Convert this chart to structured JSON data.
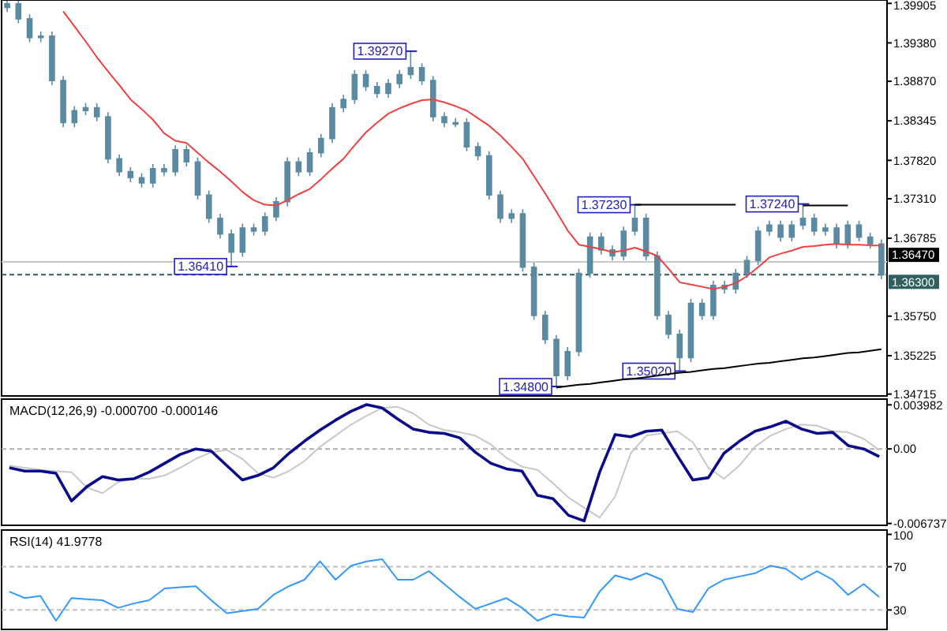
{
  "chart_data": [
    {
      "type": "candlestick",
      "color": "#5b8aa3",
      "categories": [
        null,
        null,
        null,
        null,
        null,
        null,
        null,
        null,
        null,
        null,
        null,
        null,
        null,
        null,
        null,
        null,
        null,
        null,
        null,
        null,
        null,
        null,
        null,
        null,
        null,
        null,
        null,
        null,
        null,
        null,
        null,
        null,
        null,
        null,
        null,
        null,
        null,
        null,
        null,
        null,
        null,
        null,
        null,
        null,
        null,
        null,
        null,
        null,
        null,
        null,
        null,
        null,
        null,
        null,
        null,
        null,
        null,
        null,
        null,
        null,
        null,
        null,
        null,
        null,
        null,
        null,
        null,
        null,
        null,
        null,
        null,
        null,
        null,
        null,
        null,
        null,
        null,
        null,
        null
      ],
      "ohlc": [
        [
          1.3985,
          1.3994,
          1.3979,
          1.399
        ],
        [
          1.399,
          1.3994,
          1.3964,
          1.397
        ],
        [
          1.397,
          1.3976,
          1.3939,
          1.3945
        ],
        [
          1.3945,
          1.3953,
          1.3939,
          1.3947
        ],
        [
          1.3947,
          1.3953,
          1.3882,
          1.3888
        ],
        [
          1.3888,
          1.3894,
          1.3826,
          1.3832
        ],
        [
          1.3832,
          1.3854,
          1.3826,
          1.3848
        ],
        [
          1.3848,
          1.3858,
          1.3842,
          1.3852
        ],
        [
          1.3852,
          1.3858,
          1.3834,
          1.384
        ],
        [
          1.384,
          1.3846,
          1.3778,
          1.3784
        ],
        [
          1.3784,
          1.379,
          1.3761,
          1.3767
        ],
        [
          1.3767,
          1.3773,
          1.3753,
          1.3759
        ],
        [
          1.3759,
          1.3765,
          1.3746,
          1.3752
        ],
        [
          1.3752,
          1.3777,
          1.3746,
          1.3771
        ],
        [
          1.3771,
          1.3777,
          1.3761,
          1.3767
        ],
        [
          1.3767,
          1.3802,
          1.3761,
          1.3796
        ],
        [
          1.3796,
          1.3802,
          1.3774,
          1.378
        ],
        [
          1.378,
          1.3786,
          1.373,
          1.3736
        ],
        [
          1.3736,
          1.3742,
          1.3699,
          1.3705
        ],
        [
          1.3705,
          1.3711,
          1.3678,
          1.3684
        ],
        [
          1.3684,
          1.369,
          1.3641,
          1.366
        ],
        [
          1.366,
          1.3698,
          1.3654,
          1.3692
        ],
        [
          1.3692,
          1.3698,
          1.3682,
          1.3688
        ],
        [
          1.3688,
          1.3713,
          1.3682,
          1.3707
        ],
        [
          1.3707,
          1.3733,
          1.3701,
          1.3727
        ],
        [
          1.3727,
          1.3786,
          1.3721,
          1.378
        ],
        [
          1.378,
          1.3786,
          1.3761,
          1.3767
        ],
        [
          1.3767,
          1.3798,
          1.3761,
          1.3792
        ],
        [
          1.3792,
          1.3817,
          1.3786,
          1.3811
        ],
        [
          1.3811,
          1.3858,
          1.3805,
          1.3852
        ],
        [
          1.3852,
          1.3869,
          1.3846,
          1.3863
        ],
        [
          1.3863,
          1.3902,
          1.3857,
          1.3896
        ],
        [
          1.3896,
          1.3902,
          1.3874,
          1.388
        ],
        [
          1.388,
          1.3886,
          1.3865,
          1.3871
        ],
        [
          1.3871,
          1.389,
          1.3865,
          1.3884
        ],
        [
          1.3884,
          1.3902,
          1.3878,
          1.3896
        ],
        [
          1.3896,
          1.3927,
          1.389,
          1.3905
        ],
        [
          1.3905,
          1.3911,
          1.3882,
          1.3888
        ],
        [
          1.3888,
          1.3894,
          1.3834,
          1.384
        ],
        [
          1.384,
          1.3846,
          1.3826,
          1.3832
        ],
        [
          1.3832,
          1.3838,
          1.3826,
          1.3832
        ],
        [
          1.3832,
          1.3838,
          1.3794,
          1.38
        ],
        [
          1.38,
          1.3806,
          1.3782,
          1.3788
        ],
        [
          1.3788,
          1.3794,
          1.373,
          1.3736
        ],
        [
          1.3736,
          1.3742,
          1.3699,
          1.3705
        ],
        [
          1.3705,
          1.3717,
          1.3699,
          1.3711
        ],
        [
          1.3711,
          1.3717,
          1.3634,
          1.364
        ],
        [
          1.364,
          1.3646,
          1.357,
          1.3576
        ],
        [
          1.3576,
          1.3582,
          1.3538,
          1.3544
        ],
        [
          1.3544,
          1.355,
          1.348,
          1.3496
        ],
        [
          1.3496,
          1.3534,
          1.349,
          1.3528
        ],
        [
          1.3528,
          1.3638,
          1.3522,
          1.3632
        ],
        [
          1.3632,
          1.3686,
          1.3626,
          1.368
        ],
        [
          1.368,
          1.3686,
          1.3657,
          1.3663
        ],
        [
          1.3663,
          1.3669,
          1.3649,
          1.3655
        ],
        [
          1.3655,
          1.3694,
          1.3649,
          1.3688
        ],
        [
          1.3688,
          1.3723,
          1.3682,
          1.3705
        ],
        [
          1.3705,
          1.3711,
          1.3649,
          1.3655
        ],
        [
          1.3655,
          1.3661,
          1.357,
          1.3576
        ],
        [
          1.3576,
          1.3582,
          1.3545,
          1.3551
        ],
        [
          1.3551,
          1.3557,
          1.3502,
          1.352
        ],
        [
          1.352,
          1.3598,
          1.3514,
          1.3592
        ],
        [
          1.3592,
          1.3598,
          1.357,
          1.3576
        ],
        [
          1.3576,
          1.3622,
          1.357,
          1.3616
        ],
        [
          1.3616,
          1.3622,
          1.3605,
          1.3611
        ],
        [
          1.3611,
          1.3638,
          1.3605,
          1.3632
        ],
        [
          1.3632,
          1.3655,
          1.3626,
          1.3649
        ],
        [
          1.3649,
          1.3694,
          1.3643,
          1.3688
        ],
        [
          1.3688,
          1.3702,
          1.3682,
          1.3696
        ],
        [
          1.3696,
          1.3702,
          1.3674,
          1.368
        ],
        [
          1.368,
          1.3702,
          1.3674,
          1.3696
        ],
        [
          1.3696,
          1.3724,
          1.369,
          1.3705
        ],
        [
          1.3705,
          1.3711,
          1.3682,
          1.3688
        ],
        [
          1.3688,
          1.3698,
          1.3682,
          1.3692
        ],
        [
          1.3692,
          1.3698,
          1.3665,
          1.3671
        ],
        [
          1.3671,
          1.3702,
          1.3665,
          1.3696
        ],
        [
          1.3696,
          1.3702,
          1.3674,
          1.368
        ],
        [
          1.368,
          1.3686,
          1.3665,
          1.3671
        ],
        [
          1.3671,
          1.3677,
          1.3624,
          1.363
        ]
      ],
      "series": [
        {
          "type": "line",
          "color": "#f04040",
          "values": [
            null,
            null,
            null,
            null,
            null,
            1.398,
            1.396,
            1.394,
            1.3919,
            1.39,
            1.3882,
            1.3863,
            1.385,
            1.3836,
            1.3818,
            1.3808,
            1.3805,
            1.3792,
            1.3779,
            1.3767,
            1.3754,
            1.374,
            1.3729,
            1.3723,
            1.3722,
            1.3729,
            1.3737,
            1.3744,
            1.3757,
            1.3771,
            1.3784,
            1.3802,
            1.3819,
            1.3832,
            1.3844,
            1.3851,
            1.3857,
            1.3862,
            1.3863,
            1.3859,
            1.3854,
            1.3848,
            1.3838,
            1.3828,
            1.3815,
            1.38,
            1.3784,
            1.3761,
            1.3738,
            1.3714,
            1.3689,
            1.367,
            1.3667,
            1.3664,
            1.366,
            1.3662,
            1.3666,
            1.3661,
            1.3655,
            1.3638,
            1.362,
            1.3617,
            1.3614,
            1.3611,
            1.3614,
            1.3619,
            1.3628,
            1.364,
            1.3653,
            1.3658,
            1.3662,
            1.3667,
            1.3668,
            1.367,
            1.3671,
            1.367,
            1.367,
            1.3669,
            1.3669
          ]
        },
        {
          "type": "line",
          "color": "#000000",
          "values": [
            null,
            null,
            null,
            null,
            null,
            null,
            null,
            null,
            null,
            null,
            null,
            null,
            null,
            null,
            null,
            null,
            null,
            null,
            null,
            null,
            null,
            null,
            null,
            null,
            null,
            null,
            null,
            null,
            null,
            null,
            null,
            null,
            null,
            null,
            null,
            null,
            null,
            null,
            null,
            null,
            null,
            null,
            null,
            null,
            null,
            null,
            null,
            null,
            null,
            null,
            null,
            null,
            null,
            null,
            null,
            null,
            1.3723,
            1.3723,
            1.3723,
            1.3723,
            1.3723,
            1.3723,
            1.3723,
            1.3723,
            1.3723,
            1.3723,
            null,
            null,
            null,
            null,
            null,
            1.3722,
            1.3722,
            1.3722,
            1.3722,
            1.3722,
            null,
            null,
            null
          ]
        },
        {
          "type": "line",
          "color": "#000000",
          "values": [
            null,
            null,
            null,
            null,
            null,
            null,
            null,
            null,
            null,
            null,
            null,
            null,
            null,
            null,
            null,
            null,
            null,
            null,
            null,
            null,
            null,
            null,
            null,
            null,
            null,
            null,
            null,
            null,
            null,
            null,
            null,
            null,
            null,
            null,
            null,
            null,
            null,
            null,
            null,
            null,
            null,
            null,
            null,
            null,
            null,
            null,
            null,
            null,
            null,
            1.348,
            1.3482,
            1.3484,
            1.3485,
            1.3487,
            1.3489,
            1.3491,
            1.3492,
            1.3494,
            1.3496,
            1.3498,
            1.35,
            1.3501,
            1.3503,
            1.3505,
            1.3506,
            1.3508,
            1.351,
            1.3512,
            1.3513,
            1.3515,
            1.3517,
            1.3519,
            1.352,
            1.3522,
            1.3524,
            1.3526,
            1.3527,
            1.3529,
            1.3531
          ]
        }
      ],
      "ylim": [
        1.3469,
        1.3995
      ],
      "yticks": [
        {
          "value": 1.39905,
          "label": "1.39905"
        },
        {
          "value": 1.3938,
          "label": "1.39380"
        },
        {
          "value": 1.3887,
          "label": "1.38870"
        },
        {
          "value": 1.38345,
          "label": "1.38345"
        },
        {
          "value": 1.3782,
          "label": "1.37820"
        },
        {
          "value": 1.3731,
          "label": "1.37310"
        },
        {
          "value": 1.36785,
          "label": "1.36785"
        },
        {
          "value": 1.3575,
          "label": "1.35750"
        },
        {
          "value": 1.35225,
          "label": "1.35225"
        },
        {
          "value": 1.34715,
          "label": "1.34715"
        }
      ],
      "tick_labels": "y",
      "ref_lines": [
        {
          "axis": "y",
          "value": 1.3647,
          "label": "1.36470",
          "color": "#c8c8c8"
        },
        {
          "axis": "y",
          "value": 1.363,
          "label": "1.36300",
          "color": "#2f5f5f",
          "line_style": "dashed"
        }
      ],
      "annotations": [
        {
          "text": "1.36410",
          "y": 1.3641
        },
        {
          "text": "1.39270",
          "y": 1.3927
        },
        {
          "text": "1.34800",
          "y": 1.348
        },
        {
          "text": "1.37230",
          "y": 1.3723
        },
        {
          "text": "1.35020",
          "y": 1.3502
        },
        {
          "text": "1.37240",
          "y": 1.3724
        }
      ]
    },
    {
      "type": "line",
      "title": "MACD(12,26,9) -0.000700 -0.000146",
      "ylim": [
        -0.0069,
        0.0045
      ],
      "categories": [
        null,
        null,
        null,
        null,
        null,
        null,
        null,
        null,
        null,
        null,
        null,
        null,
        null,
        null,
        null,
        null,
        null,
        null,
        null,
        null,
        null,
        null,
        null,
        null,
        null,
        null,
        null,
        null,
        null,
        null,
        null,
        null,
        null,
        null,
        null,
        null,
        null,
        null,
        null,
        null,
        null,
        null,
        null,
        null,
        null,
        null,
        null,
        null,
        null,
        null,
        null,
        null,
        null,
        null,
        null,
        null,
        null
      ],
      "yticks": [
        {
          "value": 0.003982,
          "label": "0.003982"
        },
        {
          "value": 0,
          "label": "0.00"
        },
        {
          "value": -0.006737,
          "label": "-0.006737"
        }
      ],
      "tick_labels": "y",
      "ref_lines": [
        {
          "axis": "y",
          "value": 0,
          "color": "#b0b0b0",
          "line_style": "dashed"
        }
      ],
      "series": [
        {
          "color": "#c8c8c8",
          "values": [
            -0.0015,
            -0.0017,
            -0.0019,
            -0.002,
            -0.0021,
            -0.0035,
            -0.004,
            -0.003,
            -0.0027,
            -0.0027,
            -0.0024,
            -0.0017,
            -0.0009,
            -0.0003,
            -0.0001,
            -0.0009,
            -0.0022,
            -0.0026,
            -0.002,
            -0.0011,
            0.0002,
            0.0012,
            0.0022,
            0.003,
            0.0037,
            0.0038,
            0.0032,
            0.0022,
            0.0017,
            0.0015,
            0.0012,
            0.0004,
            -0.0008,
            -0.0016,
            -0.0019,
            -0.0031,
            -0.0044,
            -0.0053,
            -0.0062,
            -0.0043,
            -0.0004,
            0.0012,
            0.0014,
            0.0016,
            0.0006,
            -0.0017,
            -0.0027,
            -0.0015,
            0.0002,
            0.0012,
            0.0018,
            0.0022,
            0.0021,
            0.0016,
            0.0015,
            0.0009,
            -0.0001
          ]
        },
        {
          "color": "#0a0a8c",
          "values": [
            -0.0017,
            -0.002,
            -0.002,
            -0.0022,
            -0.0047,
            -0.0034,
            -0.0025,
            -0.0028,
            -0.0027,
            -0.0021,
            -0.0013,
            -0.0005,
            0,
            -0.0002,
            -0.0015,
            -0.0028,
            -0.0024,
            -0.0017,
            -0.0004,
            0.0007,
            0.0017,
            0.0026,
            0.0034,
            0.004,
            0.0037,
            0.0027,
            0.0018,
            0.0015,
            0.0014,
            0.001,
            -0.0003,
            -0.0013,
            -0.0018,
            -0.002,
            -0.0042,
            -0.0045,
            -0.006,
            -0.0065,
            -0.0021,
            0.0013,
            0.0011,
            0.0016,
            0.0017,
            -0.0006,
            -0.0028,
            -0.0026,
            -0.0004,
            0.0007,
            0.0016,
            0.002,
            0.0025,
            0.0018,
            0.0014,
            0.0015,
            0.0003,
            0,
            -0.0007
          ]
        }
      ]
    },
    {
      "type": "line",
      "title": "RSI(14) 41.9778",
      "ylim": [
        12,
        104
      ],
      "categories": [
        null,
        null,
        null,
        null,
        null,
        null,
        null,
        null,
        null,
        null,
        null,
        null,
        null,
        null,
        null,
        null,
        null,
        null,
        null,
        null,
        null,
        null,
        null,
        null,
        null,
        null,
        null,
        null,
        null,
        null,
        null,
        null,
        null,
        null,
        null,
        null,
        null,
        null,
        null,
        null,
        null,
        null,
        null,
        null,
        null,
        null,
        null,
        null,
        null,
        null,
        null,
        null,
        null,
        null,
        null,
        null,
        null
      ],
      "yticks": [
        {
          "value": 100,
          "label": "100"
        },
        {
          "value": 70,
          "label": "70"
        },
        {
          "value": 30,
          "label": "30"
        }
      ],
      "tick_labels": "y",
      "ref_lines": [
        {
          "axis": "y",
          "value": 70,
          "color": "#c0c0c0",
          "line_style": "dashed"
        },
        {
          "axis": "y",
          "value": 30,
          "color": "#c0c0c0",
          "line_style": "dashed"
        }
      ],
      "series": [
        {
          "color": "#3399ff",
          "values": [
            47,
            41,
            43,
            20,
            41,
            40,
            39,
            32,
            36,
            39,
            50,
            51,
            52,
            39,
            27,
            29,
            31,
            44,
            52,
            58,
            75,
            58,
            71,
            75,
            77,
            58,
            58,
            66,
            54,
            42,
            31,
            36,
            41,
            32,
            20,
            26,
            24,
            23,
            47,
            62,
            58,
            64,
            58,
            31,
            28,
            50,
            58,
            61,
            64,
            71,
            68,
            58,
            66,
            58,
            44,
            54,
            42
          ]
        }
      ]
    }
  ]
}
